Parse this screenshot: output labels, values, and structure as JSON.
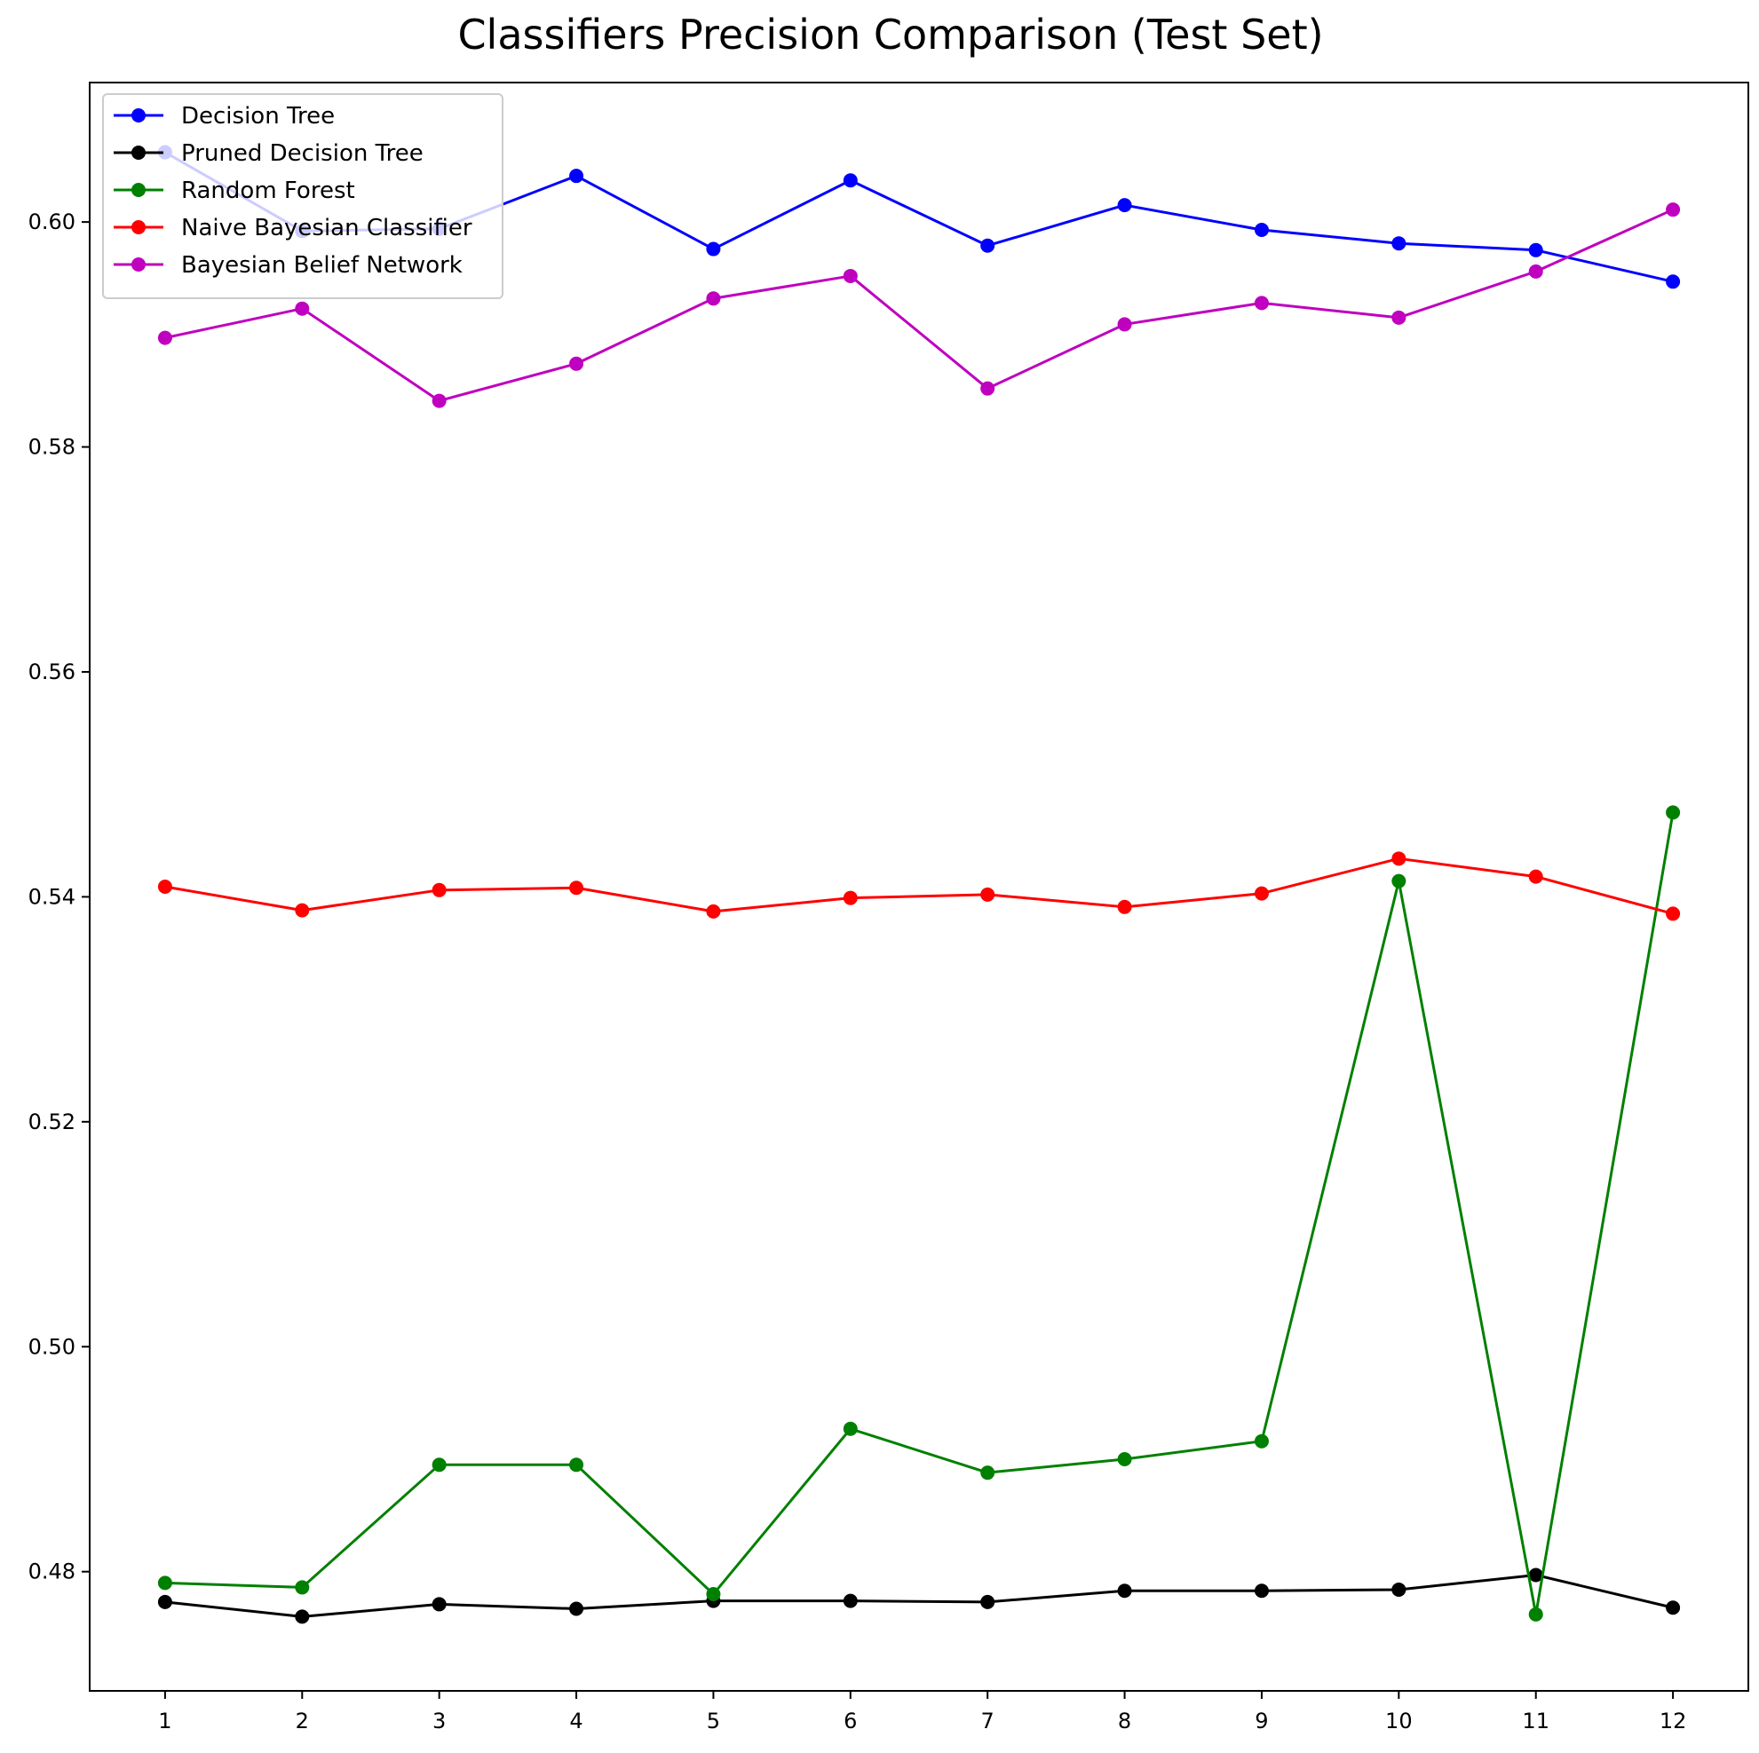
{
  "chart_data": {
    "type": "line",
    "title": "Classifiers Precision Comparison (Test Set)",
    "xlabel": "",
    "ylabel": "",
    "x": [
      1,
      2,
      3,
      4,
      5,
      6,
      7,
      8,
      9,
      10,
      11,
      12
    ],
    "x_tick_labels": [
      "1",
      "2",
      "3",
      "4",
      "5",
      "6",
      "7",
      "8",
      "9",
      "10",
      "11",
      "12"
    ],
    "xlim": [
      0.45,
      12.55
    ],
    "ylim": [
      0.4694,
      0.6124
    ],
    "y_ticks": [
      0.48,
      0.5,
      0.52,
      0.54,
      0.56,
      0.58,
      0.6
    ],
    "y_tick_labels": [
      "0.48",
      "0.50",
      "0.52",
      "0.54",
      "0.56",
      "0.58",
      "0.60"
    ],
    "grid": false,
    "legend_position": "top-left",
    "series": [
      {
        "name": "Decision Tree",
        "color": "#0000ff",
        "values": [
          0.6062,
          0.5992,
          0.5994,
          0.6041,
          0.5976,
          0.6037,
          0.5979,
          0.6015,
          0.5993,
          0.5981,
          0.5975,
          0.5947
        ]
      },
      {
        "name": "Pruned Decision Tree",
        "color": "#000000",
        "values": [
          0.4773,
          0.476,
          0.4771,
          0.4767,
          0.4774,
          0.4774,
          0.4773,
          0.4783,
          0.4783,
          0.4784,
          0.4797,
          0.4768
        ]
      },
      {
        "name": "Random Forest",
        "color": "#008000",
        "values": [
          0.479,
          0.4786,
          0.4895,
          0.4895,
          0.478,
          0.4927,
          0.4888,
          0.49,
          0.4916,
          0.5414,
          0.4762,
          0.5475
        ]
      },
      {
        "name": "Naive Bayesian Classifier",
        "color": "#ff0000",
        "values": [
          0.5409,
          0.5388,
          0.5406,
          0.5408,
          0.5387,
          0.5399,
          0.5402,
          0.5391,
          0.5403,
          0.5434,
          0.5418,
          0.5385
        ]
      },
      {
        "name": "Bayesian Belief Network",
        "color": "#bf00bf",
        "values": [
          0.5897,
          0.5923,
          0.5841,
          0.5874,
          0.5932,
          0.5952,
          0.5852,
          0.5909,
          0.5928,
          0.5915,
          0.5956,
          0.6011
        ]
      }
    ]
  }
}
